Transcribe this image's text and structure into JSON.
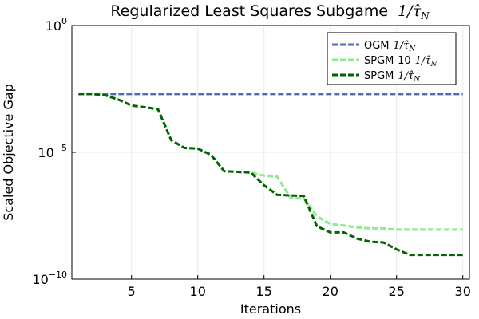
{
  "chart_data": {
    "type": "line",
    "title": "Regularized Least Squares Subgame",
    "title_math": "1/τ̂",
    "title_math_sub": "N",
    "xlabel": "Iterations",
    "ylabel": "Scaled Objective Gap",
    "xlim": [
      0.5,
      30.5
    ],
    "x_ticks": [
      5,
      10,
      15,
      20,
      25,
      30
    ],
    "ylim": [
      1e-10,
      1
    ],
    "y_scale": "log",
    "y_ticks": [
      {
        "value": 1e-10,
        "base": "10",
        "exp": "−10"
      },
      {
        "value": 1e-05,
        "base": "10",
        "exp": "−5"
      },
      {
        "value": 1,
        "base": "10",
        "exp": "0"
      }
    ],
    "grid": true,
    "legend_position": "top-right",
    "x": [
      1,
      2,
      3,
      4,
      5,
      6,
      7,
      8,
      9,
      10,
      11,
      12,
      13,
      14,
      15,
      16,
      17,
      18,
      19,
      20,
      21,
      22,
      23,
      24,
      25,
      26,
      27,
      28,
      29,
      30
    ],
    "series": [
      {
        "name": "OGM",
        "color": "#4f6bbd",
        "values": [
          0.002,
          0.002,
          0.002,
          0.002,
          0.002,
          0.002,
          0.002,
          0.002,
          0.002,
          0.002,
          0.002,
          0.002,
          0.002,
          0.002,
          0.002,
          0.002,
          0.002,
          0.002,
          0.002,
          0.002,
          0.002,
          0.002,
          0.002,
          0.002,
          0.002,
          0.002,
          0.002,
          0.002,
          0.002,
          0.002
        ]
      },
      {
        "name": "SPGM-10",
        "color": "#90e890",
        "values": [
          0.002,
          0.002,
          0.0018,
          0.0012,
          0.0007,
          0.0006,
          0.0005,
          3e-05,
          1.5e-05,
          1.4e-05,
          8e-06,
          1.8e-06,
          1.7e-06,
          1.6e-06,
          1.2e-06,
          1.1e-06,
          1.6e-07,
          1.5e-07,
          3e-08,
          1.5e-08,
          1.3e-08,
          1.1e-08,
          1e-08,
          1e-08,
          9e-09,
          9e-09,
          9e-09,
          9e-09,
          9e-09,
          9e-09
        ]
      },
      {
        "name": "SPGM",
        "color": "#006400",
        "values": [
          0.002,
          0.002,
          0.0018,
          0.0012,
          0.0007,
          0.0006,
          0.0005,
          3e-05,
          1.5e-05,
          1.4e-05,
          8e-06,
          1.8e-06,
          1.7e-06,
          1.6e-06,
          5e-07,
          2.1e-07,
          2e-07,
          1.9e-07,
          1.2e-08,
          7e-09,
          7e-09,
          4e-09,
          3e-09,
          2.8e-09,
          1.5e-09,
          9e-10,
          9e-10,
          9e-10,
          9e-10,
          9e-10
        ]
      }
    ]
  }
}
